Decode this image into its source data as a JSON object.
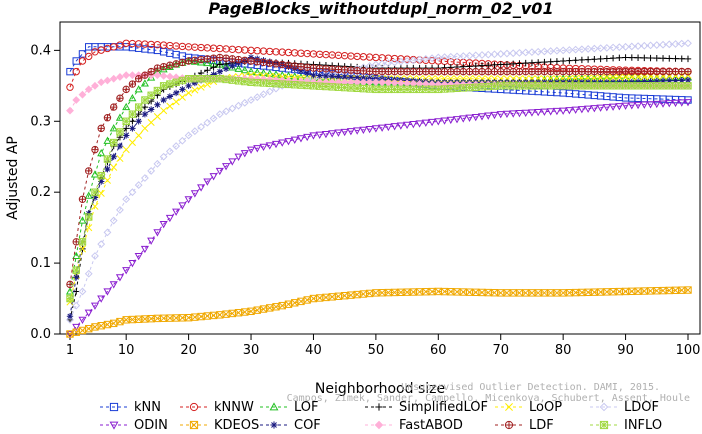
{
  "chart_data": {
    "type": "line",
    "title": "PageBlocks_withoutdupl_norm_02_v01",
    "xlabel": "Neighborhood size",
    "ylabel": "Adjusted AP",
    "xlim": [
      1,
      100
    ],
    "ylim": [
      0,
      0.44
    ],
    "xticks": [
      1,
      10,
      20,
      30,
      40,
      50,
      60,
      70,
      80,
      90,
      100
    ],
    "yticks": [
      0.0,
      0.1,
      0.2,
      0.3,
      0.4
    ],
    "ytick_labels": [
      "0.0",
      "0.1",
      "0.2",
      "0.3",
      "0.4"
    ],
    "grid": false,
    "legend_position": "bottom",
    "series": [
      {
        "name": "kNN",
        "color": "#1a3cd6",
        "marker": "square",
        "dash": "3,3",
        "points": [
          [
            1,
            0.37
          ],
          [
            2,
            0.385
          ],
          [
            3,
            0.395
          ],
          [
            4,
            0.405
          ],
          [
            6,
            0.405
          ],
          [
            10,
            0.405
          ],
          [
            15,
            0.4
          ],
          [
            20,
            0.39
          ],
          [
            30,
            0.38
          ],
          [
            40,
            0.37
          ],
          [
            50,
            0.36
          ],
          [
            60,
            0.35
          ],
          [
            70,
            0.345
          ],
          [
            80,
            0.34
          ],
          [
            90,
            0.333
          ],
          [
            100,
            0.33
          ]
        ]
      },
      {
        "name": "kNNW",
        "color": "#d42020",
        "marker": "circle",
        "dash": "3,3",
        "points": [
          [
            1,
            0.348
          ],
          [
            2,
            0.37
          ],
          [
            3,
            0.385
          ],
          [
            5,
            0.398
          ],
          [
            8,
            0.405
          ],
          [
            10,
            0.41
          ],
          [
            15,
            0.408
          ],
          [
            20,
            0.405
          ],
          [
            30,
            0.4
          ],
          [
            40,
            0.395
          ],
          [
            50,
            0.39
          ],
          [
            60,
            0.385
          ],
          [
            70,
            0.38
          ],
          [
            80,
            0.375
          ],
          [
            90,
            0.372
          ],
          [
            100,
            0.37
          ]
        ]
      },
      {
        "name": "LOF",
        "color": "#22c022",
        "marker": "triangle-up",
        "dash": "3,3",
        "points": [
          [
            1,
            0.06
          ],
          [
            2,
            0.11
          ],
          [
            3,
            0.16
          ],
          [
            4,
            0.195
          ],
          [
            5,
            0.225
          ],
          [
            6,
            0.255
          ],
          [
            8,
            0.29
          ],
          [
            10,
            0.32
          ],
          [
            12,
            0.345
          ],
          [
            15,
            0.37
          ],
          [
            18,
            0.38
          ],
          [
            20,
            0.385
          ],
          [
            25,
            0.38
          ],
          [
            30,
            0.37
          ],
          [
            40,
            0.36
          ],
          [
            50,
            0.355
          ],
          [
            60,
            0.355
          ],
          [
            70,
            0.355
          ],
          [
            80,
            0.36
          ],
          [
            90,
            0.36
          ],
          [
            100,
            0.362
          ]
        ]
      },
      {
        "name": "SimplifiedLOF",
        "color": "#000000",
        "marker": "plus",
        "dash": "3,3",
        "points": [
          [
            1,
            0.02
          ],
          [
            2,
            0.06
          ],
          [
            3,
            0.12
          ],
          [
            4,
            0.17
          ],
          [
            6,
            0.22
          ],
          [
            8,
            0.265
          ],
          [
            10,
            0.29
          ],
          [
            13,
            0.32
          ],
          [
            16,
            0.345
          ],
          [
            20,
            0.36
          ],
          [
            25,
            0.38
          ],
          [
            30,
            0.385
          ],
          [
            40,
            0.38
          ],
          [
            50,
            0.375
          ],
          [
            60,
            0.375
          ],
          [
            70,
            0.38
          ],
          [
            80,
            0.385
          ],
          [
            90,
            0.39
          ],
          [
            100,
            0.388
          ]
        ]
      },
      {
        "name": "LoOP",
        "color": "#ffee00",
        "marker": "cross",
        "dash": "3,3",
        "points": [
          [
            1,
            0.045
          ],
          [
            3,
            0.12
          ],
          [
            5,
            0.18
          ],
          [
            8,
            0.235
          ],
          [
            10,
            0.26
          ],
          [
            13,
            0.29
          ],
          [
            16,
            0.315
          ],
          [
            20,
            0.34
          ],
          [
            25,
            0.36
          ],
          [
            30,
            0.365
          ],
          [
            40,
            0.36
          ],
          [
            50,
            0.36
          ],
          [
            60,
            0.36
          ],
          [
            70,
            0.36
          ],
          [
            80,
            0.36
          ],
          [
            90,
            0.362
          ],
          [
            100,
            0.365
          ]
        ]
      },
      {
        "name": "LDOF",
        "color": "#c8c8f0",
        "marker": "diamond",
        "dash": "3,3",
        "points": [
          [
            1,
            0.02
          ],
          [
            3,
            0.06
          ],
          [
            5,
            0.11
          ],
          [
            8,
            0.16
          ],
          [
            10,
            0.19
          ],
          [
            13,
            0.22
          ],
          [
            16,
            0.25
          ],
          [
            20,
            0.28
          ],
          [
            25,
            0.31
          ],
          [
            30,
            0.33
          ],
          [
            35,
            0.35
          ],
          [
            40,
            0.36
          ],
          [
            50,
            0.38
          ],
          [
            60,
            0.39
          ],
          [
            70,
            0.395
          ],
          [
            80,
            0.4
          ],
          [
            90,
            0.405
          ],
          [
            100,
            0.41
          ]
        ]
      },
      {
        "name": "ODIN",
        "color": "#8a1ed0",
        "marker": "triangle-down",
        "dash": "3,3",
        "points": [
          [
            1,
            0.0
          ],
          [
            3,
            0.02
          ],
          [
            5,
            0.04
          ],
          [
            8,
            0.07
          ],
          [
            10,
            0.09
          ],
          [
            13,
            0.12
          ],
          [
            16,
            0.155
          ],
          [
            20,
            0.19
          ],
          [
            23,
            0.215
          ],
          [
            25,
            0.23
          ],
          [
            28,
            0.25
          ],
          [
            30,
            0.26
          ],
          [
            35,
            0.27
          ],
          [
            40,
            0.28
          ],
          [
            50,
            0.29
          ],
          [
            60,
            0.3
          ],
          [
            70,
            0.31
          ],
          [
            80,
            0.315
          ],
          [
            90,
            0.322
          ],
          [
            100,
            0.327
          ]
        ]
      },
      {
        "name": "KDEOS",
        "color": "#f0a800",
        "marker": "square-x",
        "dash": "3,3",
        "points": [
          [
            1,
            0.0
          ],
          [
            3,
            0.005
          ],
          [
            5,
            0.01
          ],
          [
            8,
            0.015
          ],
          [
            10,
            0.02
          ],
          [
            15,
            0.022
          ],
          [
            20,
            0.023
          ],
          [
            25,
            0.027
          ],
          [
            30,
            0.032
          ],
          [
            35,
            0.04
          ],
          [
            40,
            0.05
          ],
          [
            50,
            0.058
          ],
          [
            60,
            0.06
          ],
          [
            70,
            0.058
          ],
          [
            80,
            0.058
          ],
          [
            90,
            0.06
          ],
          [
            100,
            0.062
          ]
        ]
      },
      {
        "name": "COF",
        "color": "#1a1a80",
        "marker": "asterisk",
        "dash": "3,3",
        "points": [
          [
            1,
            0.025
          ],
          [
            2,
            0.08
          ],
          [
            3,
            0.13
          ],
          [
            4,
            0.17
          ],
          [
            6,
            0.215
          ],
          [
            8,
            0.25
          ],
          [
            10,
            0.28
          ],
          [
            13,
            0.31
          ],
          [
            16,
            0.33
          ],
          [
            20,
            0.35
          ],
          [
            25,
            0.37
          ],
          [
            30,
            0.39
          ],
          [
            35,
            0.38
          ],
          [
            40,
            0.365
          ],
          [
            50,
            0.36
          ],
          [
            60,
            0.355
          ],
          [
            70,
            0.355
          ],
          [
            80,
            0.355
          ],
          [
            90,
            0.355
          ],
          [
            100,
            0.358
          ]
        ]
      },
      {
        "name": "FastABOD",
        "color": "#ffb0d8",
        "marker": "diamond-filled",
        "dash": "3,3",
        "points": [
          [
            1,
            0.315
          ],
          [
            2,
            0.33
          ],
          [
            4,
            0.345
          ],
          [
            6,
            0.355
          ],
          [
            8,
            0.36
          ],
          [
            10,
            0.365
          ],
          [
            15,
            0.365
          ],
          [
            20,
            0.36
          ],
          [
            30,
            0.36
          ],
          [
            40,
            0.355
          ],
          [
            50,
            0.355
          ],
          [
            60,
            0.352
          ],
          [
            70,
            0.352
          ],
          [
            80,
            0.35
          ],
          [
            90,
            0.35
          ],
          [
            100,
            0.35
          ]
        ]
      },
      {
        "name": "LDF",
        "color": "#a02020",
        "marker": "circle-plus",
        "dash": "3,3",
        "points": [
          [
            1,
            0.07
          ],
          [
            2,
            0.13
          ],
          [
            3,
            0.19
          ],
          [
            4,
            0.23
          ],
          [
            5,
            0.26
          ],
          [
            6,
            0.29
          ],
          [
            8,
            0.32
          ],
          [
            10,
            0.345
          ],
          [
            12,
            0.36
          ],
          [
            15,
            0.375
          ],
          [
            20,
            0.385
          ],
          [
            25,
            0.39
          ],
          [
            30,
            0.385
          ],
          [
            40,
            0.375
          ],
          [
            50,
            0.37
          ],
          [
            60,
            0.37
          ],
          [
            70,
            0.37
          ],
          [
            80,
            0.37
          ],
          [
            90,
            0.37
          ],
          [
            100,
            0.37
          ]
        ]
      },
      {
        "name": "INFLO",
        "color": "#a0d840",
        "marker": "square-star",
        "dash": "3,3",
        "points": [
          [
            1,
            0.05
          ],
          [
            3,
            0.13
          ],
          [
            5,
            0.2
          ],
          [
            8,
            0.27
          ],
          [
            10,
            0.3
          ],
          [
            13,
            0.33
          ],
          [
            16,
            0.35
          ],
          [
            20,
            0.36
          ],
          [
            25,
            0.36
          ],
          [
            30,
            0.355
          ],
          [
            40,
            0.35
          ],
          [
            50,
            0.345
          ],
          [
            60,
            0.345
          ],
          [
            70,
            0.35
          ],
          [
            80,
            0.35
          ],
          [
            90,
            0.35
          ],
          [
            100,
            0.35
          ]
        ]
      }
    ],
    "watermark_lines": [
      "Campos, Zimek, Sander, Campello, Micenkova, Schubert, Assent, Houle",
      "Unsupervised Outlier Detection. DAMI, 2015."
    ]
  }
}
